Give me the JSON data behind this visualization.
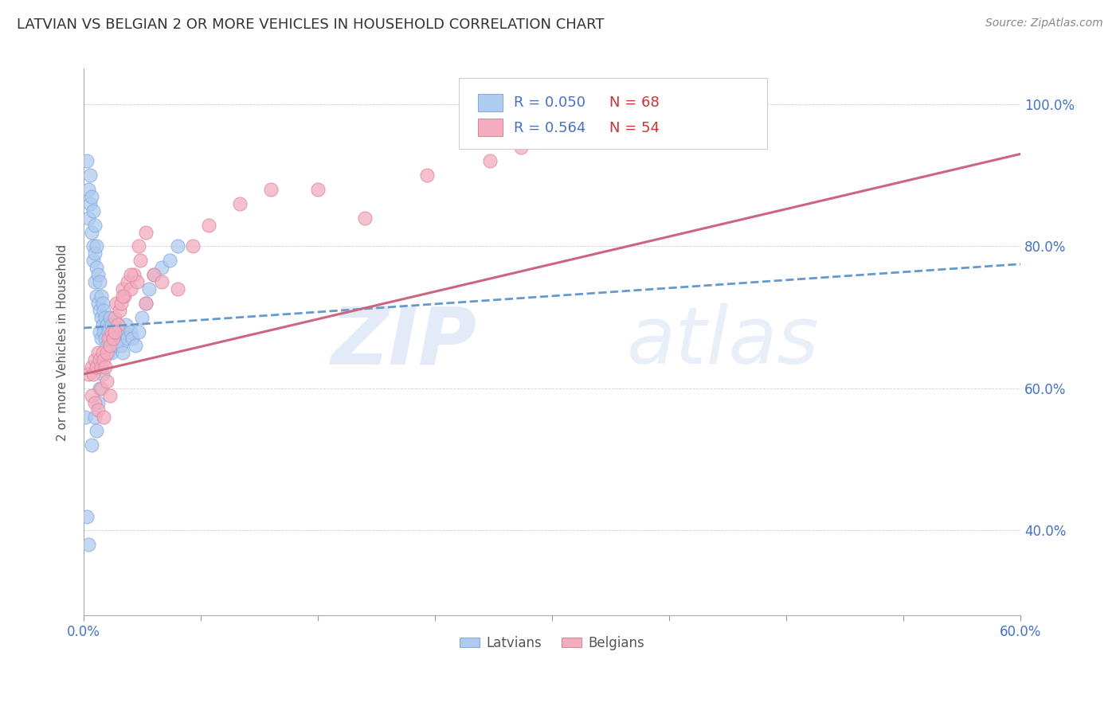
{
  "title": "LATVIAN VS BELGIAN 2 OR MORE VEHICLES IN HOUSEHOLD CORRELATION CHART",
  "source": "Source: ZipAtlas.com",
  "ylabel": "2 or more Vehicles in Household",
  "xlim": [
    0.0,
    0.6
  ],
  "ylim": [
    0.28,
    1.05
  ],
  "yticks": [
    0.4,
    0.6,
    0.8,
    1.0
  ],
  "ytick_labels": [
    "40.0%",
    "60.0%",
    "80.0%",
    "100.0%"
  ],
  "latvian_color": "#aecbf0",
  "belgian_color": "#f4adc0",
  "latvian_edge": "#88aadd",
  "belgian_edge": "#dd8899",
  "trend_latvian_color": "#6699cc",
  "trend_belgian_color": "#cc6680",
  "latvian_R": 0.05,
  "latvian_N": 68,
  "belgian_R": 0.564,
  "belgian_N": 54,
  "watermark": "ZIPatlas",
  "seed": 1234,
  "latvian_x": [
    0.001,
    0.002,
    0.003,
    0.003,
    0.004,
    0.004,
    0.005,
    0.005,
    0.006,
    0.006,
    0.006,
    0.007,
    0.007,
    0.007,
    0.008,
    0.008,
    0.008,
    0.009,
    0.009,
    0.01,
    0.01,
    0.01,
    0.011,
    0.011,
    0.011,
    0.012,
    0.012,
    0.013,
    0.013,
    0.014,
    0.014,
    0.015,
    0.015,
    0.016,
    0.016,
    0.017,
    0.017,
    0.018,
    0.018,
    0.019,
    0.02,
    0.021,
    0.022,
    0.023,
    0.024,
    0.025,
    0.026,
    0.027,
    0.028,
    0.03,
    0.031,
    0.033,
    0.035,
    0.037,
    0.04,
    0.042,
    0.045,
    0.05,
    0.055,
    0.06,
    0.002,
    0.003,
    0.005,
    0.007,
    0.008,
    0.009,
    0.01,
    0.012
  ],
  "latvian_y": [
    0.56,
    0.92,
    0.88,
    0.84,
    0.9,
    0.86,
    0.87,
    0.82,
    0.85,
    0.8,
    0.78,
    0.83,
    0.79,
    0.75,
    0.8,
    0.77,
    0.73,
    0.76,
    0.72,
    0.75,
    0.71,
    0.68,
    0.73,
    0.7,
    0.67,
    0.72,
    0.69,
    0.71,
    0.68,
    0.7,
    0.67,
    0.69,
    0.66,
    0.68,
    0.65,
    0.7,
    0.67,
    0.69,
    0.65,
    0.68,
    0.67,
    0.66,
    0.68,
    0.67,
    0.66,
    0.65,
    0.68,
    0.69,
    0.67,
    0.68,
    0.67,
    0.66,
    0.68,
    0.7,
    0.72,
    0.74,
    0.76,
    0.77,
    0.78,
    0.8,
    0.42,
    0.38,
    0.52,
    0.56,
    0.54,
    0.58,
    0.6,
    0.62
  ],
  "belgian_x": [
    0.003,
    0.005,
    0.006,
    0.007,
    0.008,
    0.009,
    0.01,
    0.011,
    0.012,
    0.013,
    0.014,
    0.015,
    0.016,
    0.017,
    0.018,
    0.019,
    0.02,
    0.021,
    0.022,
    0.023,
    0.024,
    0.025,
    0.026,
    0.028,
    0.03,
    0.032,
    0.034,
    0.036,
    0.04,
    0.045,
    0.005,
    0.007,
    0.009,
    0.011,
    0.013,
    0.015,
    0.017,
    0.02,
    0.025,
    0.03,
    0.035,
    0.04,
    0.05,
    0.06,
    0.07,
    0.08,
    0.1,
    0.12,
    0.15,
    0.18,
    0.22,
    0.26,
    0.28,
    0.3
  ],
  "belgian_y": [
    0.62,
    0.63,
    0.62,
    0.64,
    0.63,
    0.65,
    0.64,
    0.63,
    0.65,
    0.64,
    0.63,
    0.65,
    0.67,
    0.66,
    0.68,
    0.67,
    0.7,
    0.72,
    0.69,
    0.71,
    0.72,
    0.74,
    0.73,
    0.75,
    0.74,
    0.76,
    0.75,
    0.78,
    0.72,
    0.76,
    0.59,
    0.58,
    0.57,
    0.6,
    0.56,
    0.61,
    0.59,
    0.68,
    0.73,
    0.76,
    0.8,
    0.82,
    0.75,
    0.74,
    0.8,
    0.83,
    0.86,
    0.88,
    0.88,
    0.84,
    0.9,
    0.92,
    0.94,
    0.95
  ]
}
